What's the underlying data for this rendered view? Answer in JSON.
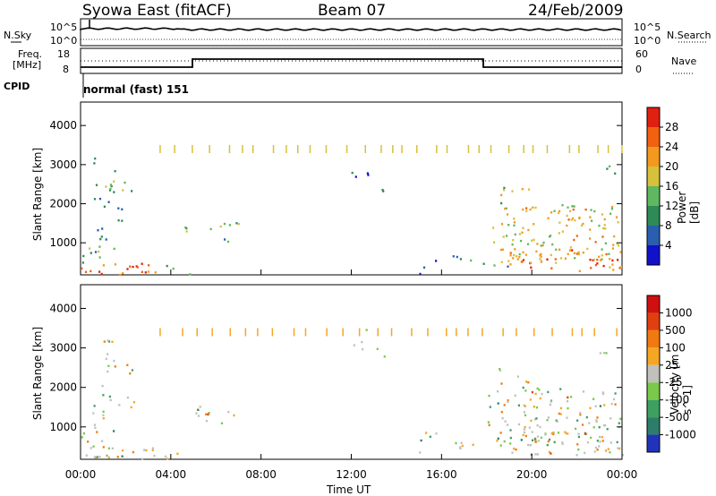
{
  "header": {
    "station": "Syowa East (fitACF)",
    "beam": "Beam 07",
    "date": "24/Feb/2009"
  },
  "top_panels": {
    "nsky_label": "N.Sky",
    "nsky_ticks": [
      "10^5",
      "10^0"
    ],
    "nsearch_label": "N.Search",
    "nsearch_ticks": [
      "10^5",
      "10^0"
    ],
    "freq_label_1": "Freq.",
    "freq_label_2": "[MHz]",
    "freq_ticks": [
      "18",
      "8"
    ],
    "nave_label": "Nave",
    "nave_ticks": [
      "60",
      "0"
    ],
    "cpid_label": "CPID",
    "cpid_value": "normal (fast) 151"
  },
  "colors": {
    "power": [
      "#1111cc",
      "#2a5fb0",
      "#2e8b57",
      "#5fb85f",
      "#d7c13a",
      "#f39a1e",
      "#f26010",
      "#e02010"
    ],
    "velocity": [
      "#2233bb",
      "#2e7d6a",
      "#3ea060",
      "#7cc84a",
      "#c0c0bc",
      "#f5a623",
      "#f07a10",
      "#e04010",
      "#d01010"
    ]
  },
  "chart_data": [
    {
      "type": "heatmap",
      "title": "",
      "xlabel": "",
      "ylabel": "Slant Range [km]",
      "xlim": [
        "00:00",
        "24:00"
      ],
      "ylim": [
        180,
        4600
      ],
      "x_ticks": [
        "00:00",
        "04:00",
        "08:00",
        "12:00",
        "16:00",
        "20:00",
        "00:00"
      ],
      "y_ticks": [
        1000,
        2000,
        3000,
        4000
      ],
      "colorbar": {
        "label": "Power [dB]",
        "ticks": [
          "4",
          "8",
          "12",
          "16",
          "20",
          "24",
          "28"
        ],
        "range": [
          0,
          30
        ]
      },
      "value_field": "power"
    },
    {
      "type": "heatmap",
      "title": "",
      "xlabel": "Time UT",
      "ylabel": "Slant Range [km]",
      "xlim": [
        "00:00",
        "24:00"
      ],
      "ylim": [
        180,
        4600
      ],
      "x_ticks": [
        "00:00",
        "04:00",
        "08:00",
        "12:00",
        "16:00",
        "20:00",
        "00:00"
      ],
      "y_ticks": [
        1000,
        2000,
        3000,
        4000
      ],
      "colorbar": {
        "label": "Velocity [m s^-1]",
        "ticks": [
          "1000",
          "500",
          "100",
          "25",
          "-25",
          "-100",
          "-500",
          "-1000"
        ],
        "range": [
          -1000,
          1000
        ]
      },
      "value_field": "velocity"
    }
  ]
}
